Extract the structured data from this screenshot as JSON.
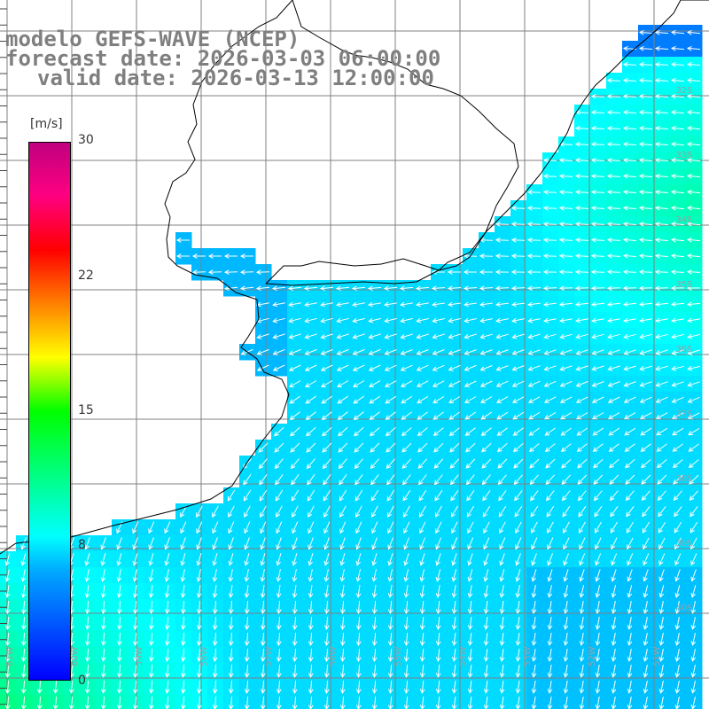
{
  "title": {
    "line1": "modelo GEFS-WAVE (NCEP)",
    "line2": "forecast date: 2026-03-03 06:00:00",
    "line3": "valid date: 2026-03-13 12:00:00"
  },
  "colorbar": {
    "unit": "[m/s]",
    "ticks": [
      "30",
      "22",
      "15",
      "8",
      "0"
    ],
    "tick_values": [
      30,
      22,
      15,
      8,
      0
    ],
    "min": 0,
    "max": 30
  },
  "grid": {
    "lat_labels": [
      "32S",
      "33S",
      "34S",
      "35S",
      "36S",
      "37S",
      "38S",
      "39S",
      "40S"
    ],
    "lon_labels": [
      "61W",
      "60W",
      "59W",
      "58W",
      "57W",
      "56W",
      "55W",
      "54W",
      "53W",
      "52W",
      "51W"
    ]
  },
  "colors": {
    "land": "#ffffff",
    "coast": "#000000",
    "grid": "#808080",
    "arrow": "#ffffff"
  }
}
